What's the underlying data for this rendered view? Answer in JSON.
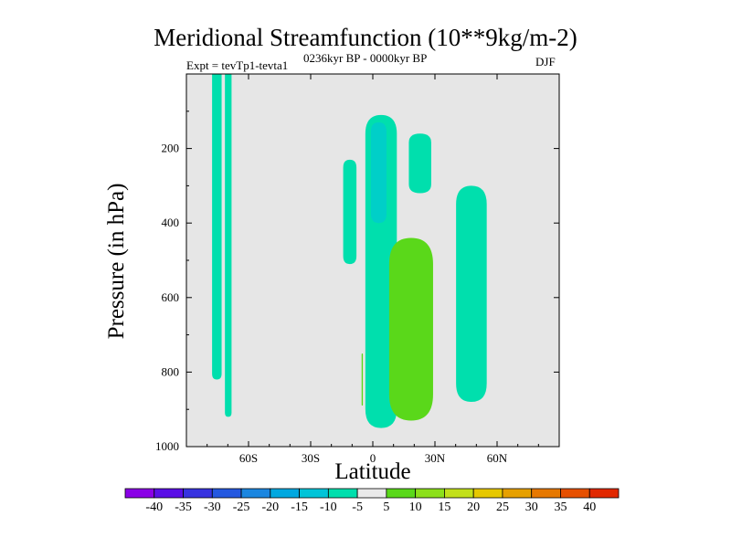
{
  "title": "Meridional Streamfunction (10**9kg/m-2)",
  "subtitle_left": "Expt = tevTp1-tevta1",
  "subtitle_center": "0236kyr BP - 0000kyr BP",
  "subtitle_right": "DJF",
  "colors": {
    "background": "#ffffff",
    "plot_background": "#e6e6e6",
    "fill_neg_10_to_neg_5": "#00dfad",
    "fill_neg_15_to_neg_10": "#00cfc8",
    "fill_5_to_10": "#5ad81a"
  },
  "chart_data": {
    "type": "contour-fill",
    "title": "Meridional Streamfunction (10**9kg/m-2)",
    "xlabel": "Latitude",
    "ylabel": "Pressure (in hPa)",
    "xlim": [
      -90,
      90
    ],
    "ylim": [
      1000,
      0
    ],
    "x_ticks": [
      {
        "value": -60,
        "label": "60S"
      },
      {
        "value": -30,
        "label": "30S"
      },
      {
        "value": 0,
        "label": "0"
      },
      {
        "value": 30,
        "label": "30N"
      },
      {
        "value": 60,
        "label": "60N"
      }
    ],
    "y_ticks": [
      {
        "value": 200,
        "label": "200"
      },
      {
        "value": 400,
        "label": "400"
      },
      {
        "value": 600,
        "label": "600"
      },
      {
        "value": 800,
        "label": "800"
      },
      {
        "value": 1000,
        "label": "1000"
      }
    ],
    "colorbar": {
      "labels": [
        "-40",
        "-35",
        "-30",
        "-25",
        "-20",
        "-15",
        "-10",
        "-5",
        "5",
        "10",
        "15",
        "20",
        "25",
        "30",
        "35",
        "40"
      ],
      "colors": [
        "#8a00e6",
        "#5a0ee6",
        "#3733e0",
        "#2458e0",
        "#1b86e0",
        "#00a8e0",
        "#00c4d8",
        "#00dfad",
        "#eaeaea",
        "#5ad81a",
        "#8ce01a",
        "#c2e01a",
        "#e6c800",
        "#e6a000",
        "#e67800",
        "#e65000",
        "#e12800"
      ]
    },
    "regions": [
      {
        "name": "sh-column-1",
        "level": "-10 to -5",
        "lat_range": [
          -77.6,
          -73.0
        ],
        "pressure_range": [
          0,
          820
        ]
      },
      {
        "name": "sh-column-2",
        "level": "-10 to -5",
        "lat_range": [
          -71.4,
          -68.2
        ],
        "pressure_range": [
          0,
          920
        ]
      },
      {
        "name": "tropical-cell-south",
        "level": "-10 to -5",
        "lat_range": [
          -14.3,
          -7.9
        ],
        "pressure_range": [
          230,
          510
        ]
      },
      {
        "name": "equatorial-upper-cell",
        "level": "-10 to -5",
        "lat_range": [
          -3.6,
          11.6
        ],
        "pressure_range": [
          110,
          950
        ]
      },
      {
        "name": "equatorial-core",
        "level": "-15 to -10",
        "lat_range": [
          -0.9,
          6.6
        ],
        "pressure_range": [
          130,
          400
        ]
      },
      {
        "name": "subtropical-small-cell",
        "level": "-10 to -5",
        "lat_range": [
          17.4,
          28.2
        ],
        "pressure_range": [
          160,
          320
        ]
      },
      {
        "name": "nh-midlat-cell",
        "level": "-10 to -5",
        "lat_range": [
          40.2,
          55.0
        ],
        "pressure_range": [
          300,
          880
        ]
      },
      {
        "name": "nh-positive-cell",
        "level": "5 to 10",
        "lat_range": [
          7.9,
          29.1
        ],
        "pressure_range": [
          440,
          930
        ]
      },
      {
        "name": "equatorial-positive-sliver",
        "level": "5 to 10",
        "lat_range": [
          -5.4,
          -4.8
        ],
        "pressure_range": [
          750,
          890
        ]
      }
    ]
  }
}
